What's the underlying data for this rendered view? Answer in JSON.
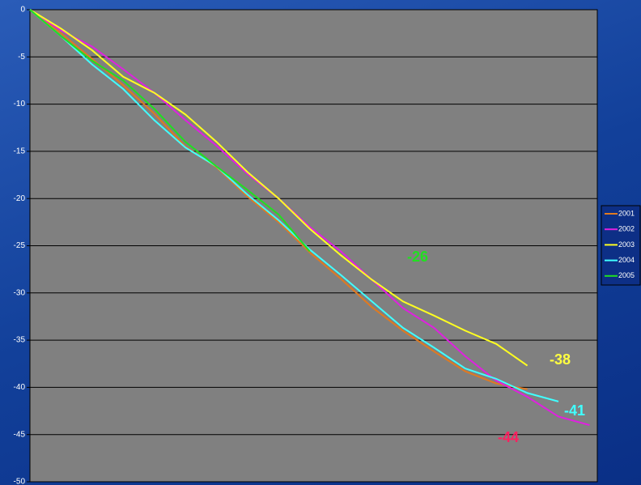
{
  "chart_data": {
    "type": "line",
    "x": [
      0,
      20,
      40,
      60,
      80,
      100,
      120,
      140,
      160,
      180,
      200,
      220,
      240,
      260,
      280,
      300,
      320,
      340,
      360
    ],
    "xlim": [
      0,
      365
    ],
    "ylim": [
      -50,
      0
    ],
    "yticks": [
      0,
      -5,
      -10,
      -15,
      -20,
      -25,
      -30,
      -35,
      -40,
      -45,
      -50
    ],
    "grid": true,
    "legend": "right",
    "series": [
      {
        "name": "2001",
        "color": "#e07a20",
        "values": [
          0,
          -2.5,
          -5.2,
          -8.0,
          -11.0,
          -14.5,
          -16.7,
          -19.8,
          -22.5,
          -25.7,
          -28.5,
          -31.5,
          -34.0,
          -36.2,
          -38.3,
          -39.6,
          -40.2,
          null,
          null
        ]
      },
      {
        "name": "2002",
        "color": "#e020e0",
        "values": [
          0,
          -2.2,
          -3.9,
          -6.3,
          -8.8,
          -11.7,
          -14.4,
          -17.4,
          -20.0,
          -23.0,
          -25.6,
          -28.6,
          -31.6,
          -33.7,
          -36.7,
          -39.3,
          -41.0,
          -43.1,
          -44.0
        ]
      },
      {
        "name": "2003",
        "color": "#ffff20",
        "values": [
          0,
          -2.0,
          -4.3,
          -7.1,
          -8.8,
          -11.1,
          -14.0,
          -17.2,
          -20.0,
          -23.2,
          -26.0,
          -28.6,
          -30.9,
          -32.4,
          -34.0,
          -35.4,
          -37.7,
          null,
          null
        ]
      },
      {
        "name": "2004",
        "color": "#40ffff",
        "values": [
          0,
          -2.8,
          -5.8,
          -8.4,
          -11.7,
          -14.6,
          -16.6,
          -19.6,
          -22.3,
          -25.4,
          -28.1,
          -30.9,
          -33.7,
          -35.8,
          -38.0,
          -39.1,
          -40.6,
          -41.5,
          null
        ]
      },
      {
        "name": "2005",
        "color": "#20e020",
        "values": [
          0,
          -2.8,
          -5.4,
          -7.5,
          -10.5,
          -14.0,
          -16.6,
          -19.1,
          -21.7,
          -25.6,
          null,
          null,
          null,
          null,
          null,
          null,
          null,
          null,
          null
        ]
      }
    ],
    "annotations": [
      {
        "text": "-26",
        "color": "#20e020"
      },
      {
        "text": "-38",
        "color": "#ffff40"
      },
      {
        "text": "-41",
        "color": "#40ffff"
      },
      {
        "text": "-44",
        "color": "#ff2060"
      }
    ]
  }
}
